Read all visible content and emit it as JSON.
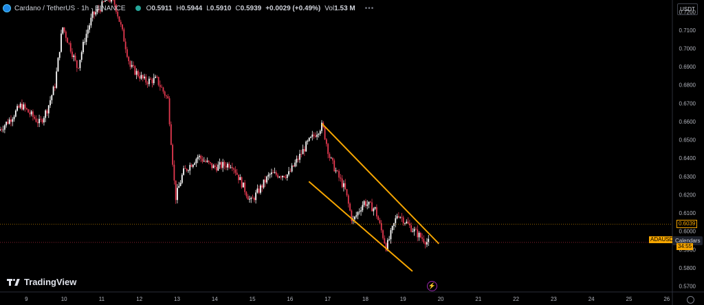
{
  "header": {
    "symbol": "Cardano / TetherUS · 1h · BINANCE",
    "open_label": "O",
    "open": "0.5911",
    "high_label": "H",
    "high": "0.5944",
    "low_label": "L",
    "low": "0.5910",
    "close_label": "C",
    "close": "0.5939",
    "change": "+0.0029 (+0.49%)",
    "vol_label": "Vol",
    "vol": "1.53 M",
    "more": "•••"
  },
  "currency_button": "USDT",
  "watermark": "TradingView",
  "labels": {
    "level_price": "0.6039",
    "ticker": "ADAUSD",
    "calendars": "Calendars",
    "countdown": "34:55"
  },
  "colors": {
    "up": "#ffffff",
    "down": "#e53950",
    "channel": "#f7a600",
    "axis_text": "#b2b5be",
    "level": "#f7a600"
  },
  "chart_data": {
    "type": "candlestick",
    "title": "Cardano / TetherUS · 1h · BINANCE",
    "x_ticks": [
      "9",
      "10",
      "11",
      "12",
      "13",
      "14",
      "15",
      "16",
      "17",
      "18",
      "19",
      "20",
      "21",
      "22",
      "23",
      "24",
      "25",
      "26"
    ],
    "y_ticks": [
      "0.5700",
      "0.5800",
      "0.5900",
      "0.6000",
      "0.6100",
      "0.6200",
      "0.6300",
      "0.6400",
      "0.6500",
      "0.6600",
      "0.6700",
      "0.6800",
      "0.6900",
      "0.7000",
      "0.7100",
      "0.7200"
    ],
    "ylim": [
      0.5668,
      0.7265
    ],
    "xlim_days": [
      8.3,
      26.15
    ],
    "path": [
      [
        8.3,
        0.655
      ],
      [
        8.6,
        0.661
      ],
      [
        8.9,
        0.669
      ],
      [
        9.2,
        0.663
      ],
      [
        9.4,
        0.659
      ],
      [
        9.6,
        0.667
      ],
      [
        9.8,
        0.68
      ],
      [
        10.0,
        0.712
      ],
      [
        10.2,
        0.701
      ],
      [
        10.4,
        0.689
      ],
      [
        10.6,
        0.706
      ],
      [
        10.8,
        0.718
      ],
      [
        11.0,
        0.722
      ],
      [
        11.2,
        0.728
      ],
      [
        11.4,
        0.724
      ],
      [
        11.6,
        0.708
      ],
      [
        11.8,
        0.69
      ],
      [
        12.0,
        0.686
      ],
      [
        12.2,
        0.682
      ],
      [
        12.5,
        0.683
      ],
      [
        12.8,
        0.672
      ],
      [
        13.0,
        0.618
      ],
      [
        13.2,
        0.632
      ],
      [
        13.6,
        0.641
      ],
      [
        14.0,
        0.635
      ],
      [
        14.5,
        0.637
      ],
      [
        15.0,
        0.616
      ],
      [
        15.5,
        0.631
      ],
      [
        16.0,
        0.631
      ],
      [
        16.5,
        0.648
      ],
      [
        16.9,
        0.658
      ],
      [
        17.1,
        0.64
      ],
      [
        17.3,
        0.631
      ],
      [
        17.5,
        0.623
      ],
      [
        17.7,
        0.605
      ],
      [
        18.0,
        0.616
      ],
      [
        18.3,
        0.612
      ],
      [
        18.6,
        0.591
      ],
      [
        18.9,
        0.61
      ],
      [
        19.2,
        0.603
      ],
      [
        19.5,
        0.597
      ],
      [
        19.7,
        0.5939
      ]
    ],
    "channel": {
      "upper": [
        [
          16.85,
          0.6588
        ],
        [
          19.95,
          0.5932
        ]
      ],
      "lower": [
        [
          16.5,
          0.6272
        ],
        [
          19.25,
          0.5781
        ]
      ]
    },
    "levels": {
      "price_line": 0.6039,
      "current_price": 0.5939
    }
  }
}
